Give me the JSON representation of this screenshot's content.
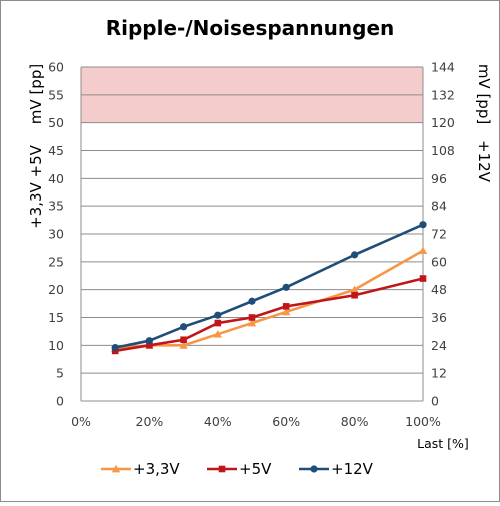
{
  "chart_data": {
    "type": "line",
    "title": "Ripple-/Noisespannungen",
    "xlabel": "Last [%]",
    "ylabel_left": [
      "+3,3V +5V",
      "mV [pp]"
    ],
    "ylabel_right": [
      "+12V",
      "mV [pp]"
    ],
    "x": [
      10,
      20,
      30,
      40,
      50,
      60,
      80,
      100
    ],
    "x_ticks": [
      "0%",
      "20%",
      "40%",
      "60%",
      "80%",
      "100%"
    ],
    "xlim": [
      0,
      100
    ],
    "ylim_left": [
      0,
      60
    ],
    "ylim_right": [
      0,
      144
    ],
    "y_ticks_left": [
      "0",
      "5",
      "10",
      "15",
      "20",
      "25",
      "30",
      "35",
      "40",
      "45",
      "50",
      "55",
      "60"
    ],
    "y_ticks_right": [
      "0",
      "12",
      "24",
      "36",
      "48",
      "60",
      "72",
      "84",
      "96",
      "108",
      "120",
      "132",
      "144"
    ],
    "limit_band_left": [
      50,
      60
    ],
    "grid": true,
    "legend_position": "bottom",
    "series": [
      {
        "name": "+3,3V",
        "axis": "left",
        "color": "#f79646",
        "marker": "triangle",
        "values": [
          9.5,
          10,
          10,
          12,
          14,
          16,
          20,
          27
        ]
      },
      {
        "name": "+5V",
        "axis": "left",
        "color": "#c0161a",
        "marker": "square",
        "values": [
          9,
          10,
          11,
          14,
          15,
          17,
          19,
          22
        ]
      },
      {
        "name": "+12V",
        "axis": "right",
        "color": "#1f4e79",
        "marker": "circle",
        "values": [
          23,
          26,
          32,
          37,
          43,
          49,
          63,
          76
        ]
      }
    ],
    "colors": {
      "limit_band": "#f4cccc",
      "grid": "#8c8c8c"
    }
  }
}
